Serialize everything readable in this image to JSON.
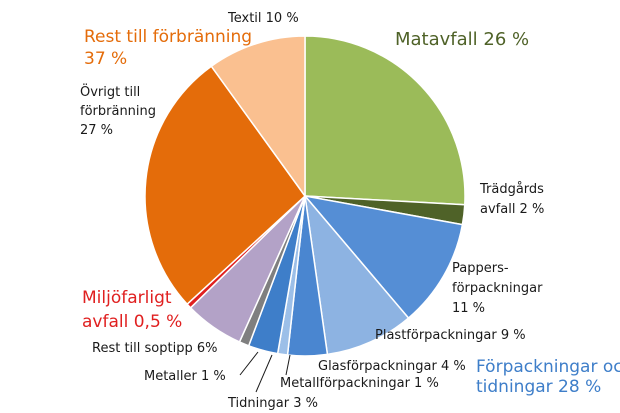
{
  "chart_data": {
    "type": "pie",
    "slices": [
      {
        "label": "Matavfall 26 %",
        "value": 26,
        "color": "#9bbb59"
      },
      {
        "label": "Trädgårdsavfall 2 %",
        "value": 2,
        "color": "#4f6228"
      },
      {
        "label": "Pappersförpackningar 11 %",
        "value": 11,
        "color": "#558ed5"
      },
      {
        "label": "Plastförpackningar 9 %",
        "value": 9,
        "color": "#8db3e2"
      },
      {
        "label": "Glasförpackningar 4 %",
        "value": 4,
        "color": "#4a86d0"
      },
      {
        "label": "Metallförpackningar 1 %",
        "value": 1,
        "color": "#9cbfe8"
      },
      {
        "label": "Tidningar 3 %",
        "value": 3,
        "color": "#3e7ec9"
      },
      {
        "label": "Metaller 1 %",
        "value": 1,
        "color": "#7f7f7f"
      },
      {
        "label": "Rest till soptipp 6%",
        "value": 6,
        "color": "#b3a2c7"
      },
      {
        "label": "Miljöfarligt avfall 0,5 %",
        "value": 0.5,
        "color": "#e02020"
      },
      {
        "label": "Övrigt till förbränning 27 %",
        "value": 27,
        "color": "#e46c0a"
      },
      {
        "label": "Textil 10 %",
        "value": 10,
        "color": "#fac090"
      }
    ],
    "labels": {
      "textil": "Textil 10 %",
      "matavfall": "Matavfall 26 %",
      "tradgard": [
        "Trädgårds",
        "avfall 2 %"
      ],
      "papper": [
        "Pappers-",
        "förpackningar",
        "11 %"
      ],
      "plast": "Plastförpackningar 9 %",
      "glas": "Glasförpackningar 4 %",
      "metallforp": "Metallförpackningar 1 %",
      "tidningar": "Tidningar 3 %",
      "metaller": "Metaller 1 %",
      "soptipp": "Rest till soptipp 6%",
      "ovrigt": [
        "Övrigt till",
        "förbränning",
        "27 %"
      ]
    },
    "group_labels": {
      "rest": {
        "lines": [
          "Rest till förbränning",
          "37 %"
        ],
        "color": "#e46c0a"
      },
      "miljo": {
        "lines": [
          "Miljöfarligt",
          "avfall 0,5 %"
        ],
        "color": "#e02020"
      },
      "forp": {
        "lines": [
          "Förpackningar och",
          "tidningar 28 %"
        ],
        "color": "#3e7ec9"
      }
    },
    "matavfall_color": "#4f6228"
  }
}
